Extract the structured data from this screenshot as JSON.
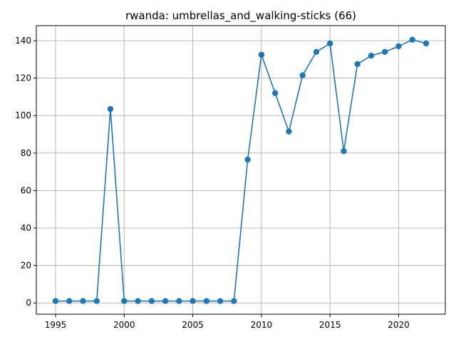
{
  "chart_data": {
    "type": "line",
    "title": "rwanda: umbrellas_and_walking-sticks (66)",
    "xlabel": "",
    "ylabel": "",
    "xlim": [
      1993.6,
      2023.4
    ],
    "ylim": [
      -6,
      148
    ],
    "xticks": [
      1995,
      2000,
      2005,
      2010,
      2015,
      2020
    ],
    "yticks": [
      0,
      20,
      40,
      60,
      80,
      100,
      120,
      140
    ],
    "grid": true,
    "color": "#1f77b4",
    "series": [
      {
        "x": [
          1995,
          1996,
          1997,
          1998,
          1999,
          2000,
          2001,
          2002,
          2003,
          2004,
          2005,
          2006,
          2007,
          2008,
          2009,
          2010,
          2011,
          2012,
          2013,
          2014,
          2015,
          2016,
          2017,
          2018,
          2019,
          2020,
          2021,
          2022
        ],
        "values": [
          1,
          1,
          1,
          1,
          103.5,
          1,
          1,
          1,
          1,
          1,
          1,
          1,
          1,
          1,
          76.5,
          132.5,
          112,
          91.5,
          121.5,
          134,
          138.5,
          81,
          127.5,
          132,
          134,
          137,
          140.5,
          138.5
        ]
      }
    ]
  }
}
